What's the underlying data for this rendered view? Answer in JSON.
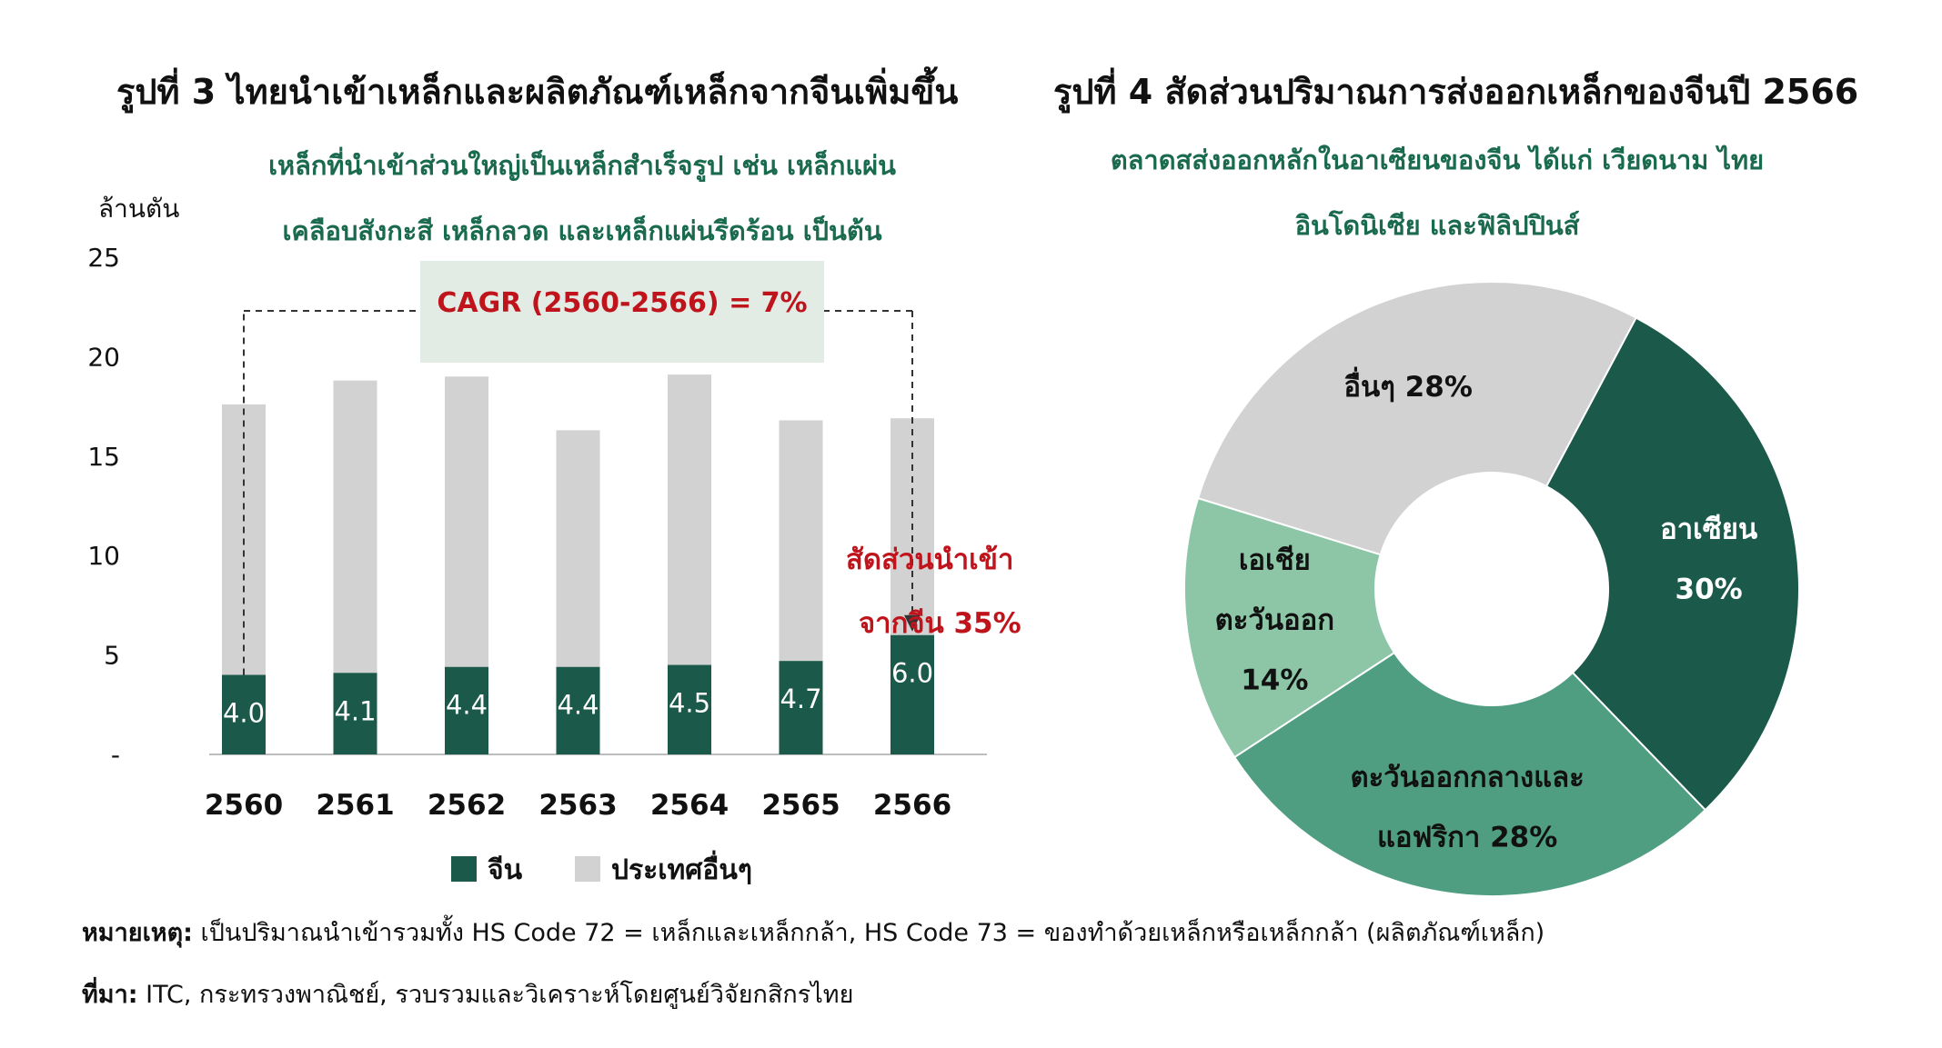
{
  "titles": {
    "fig3": "รูปที่ 3 ไทยนำเข้าเหล็กและผลิตภัณฑ์เหล็กจากจีนเพิ่มขึ้น",
    "fig4": "รูปที่ 4 สัดส่วนปริมาณการส่งออกเหล็กของจีนปี 2566"
  },
  "subtitles": {
    "fig3_line1": "เหล็กที่นำเข้าส่วนใหญ่เป็นเหล็กสำเร็จรูป เช่น เหล็กแผ่น",
    "fig3_line2": "เคลือบสังกะสี เหล็กลวด และเหล็กแผ่นรีดร้อน เป็นต้น",
    "fig4_line1": "ตลาดสส่งออกหลักในอาเซียนของจีน ได้แก่ เวียดนาม ไทย",
    "fig4_line2": "อินโดนิเซีย และฟิลิปปินส์"
  },
  "annotations": {
    "cagr": "CAGR (2560-2566)   = 7%",
    "share_line1": "สัดส่วนนำเข้า",
    "share_line2": "จากจีน 35%"
  },
  "footnotes": {
    "note_label": "หมายเหตุ:",
    "note_text": " เป็นปริมาณนำเข้ารวมทั้ง HS Code 72 = เหล็กและเหล็กกล้า, HS Code 73 = ของทำด้วยเหล็กหรือเหล็กกล้า (ผลิตภัณฑ์เหล็ก)",
    "source_label": "ที่มา:",
    "source_text": " ITC, กระทรวงพาณิชย์, รวบรวมและวิเคราะห์โดยศูนย์วิจัยกสิกรไทย"
  },
  "colors": {
    "china": "#1b5a4a",
    "others": "#d3d2d2",
    "subtitle_green": "#1a6a4e",
    "highlight_red": "#c0141c",
    "cagr_box": "#e2ebe4"
  },
  "chart_data": [
    {
      "type": "bar",
      "stacked": true,
      "title": "รูปที่ 3 ไทยนำเข้าเหล็กและผลิตภัณฑ์เหล็กจากจีนเพิ่มขึ้น",
      "ylabel": "ล้านตัน",
      "categories": [
        "2560",
        "2561",
        "2562",
        "2563",
        "2564",
        "2565",
        "2566"
      ],
      "series": [
        {
          "name": "จีน",
          "color": "#1b5a4a",
          "values": [
            4.0,
            4.1,
            4.4,
            4.4,
            4.5,
            4.7,
            6.0
          ],
          "labels": [
            "4.0",
            "4.1",
            "4.4",
            "4.4",
            "4.5",
            "4.7",
            "6.0"
          ]
        },
        {
          "name": "ประเทศอื่นๆ",
          "color": "#d3d2d2",
          "values": [
            13.6,
            14.7,
            14.6,
            11.9,
            14.6,
            12.1,
            10.9
          ]
        }
      ],
      "yticks": [
        "-",
        "5",
        "10",
        "15",
        "20",
        "25"
      ],
      "ylim": [
        0,
        25
      ],
      "legend": "bottom"
    },
    {
      "type": "pie",
      "donut": true,
      "title": "รูปที่ 4 สัดส่วนปริมาณการส่งออกเหล็กของจีนปี 2566",
      "slices": [
        {
          "label_lines": [
            "อาเซียน",
            "30%"
          ],
          "value": 30,
          "color": "#1b5a4a",
          "text_color": "#ffffff"
        },
        {
          "label_lines": [
            "ตะวันออกกลางและ",
            "แอฟริกา 28%"
          ],
          "value": 28,
          "color": "#4f9e82",
          "text_color": "#111111"
        },
        {
          "label_lines": [
            "เอเชีย",
            "ตะวันออก",
            "14%"
          ],
          "value": 14,
          "color": "#8cc6a7",
          "text_color": "#111111"
        },
        {
          "label_lines": [
            "อื่นๆ 28%"
          ],
          "value": 28,
          "color": "#d3d2d2",
          "text_color": "#111111"
        }
      ]
    }
  ]
}
